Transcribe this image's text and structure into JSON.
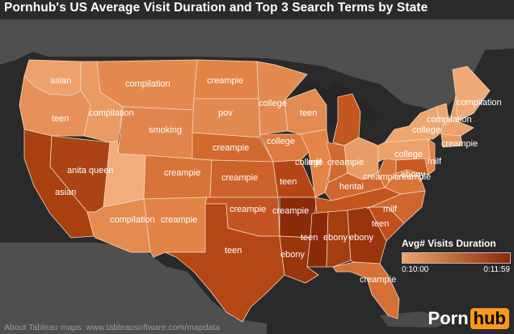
{
  "title": "Pornhub's US Average Visit Duration and Top 3 Search Terms by State",
  "credit": "About Tableau maps: www.tableausoftware.com/mapdata",
  "legend": {
    "title": "Avg# Visits Duration",
    "min_label": "0:10:00",
    "max_label": "0:11:59",
    "min_color": "#f0a46a",
    "max_color": "#8a2a08"
  },
  "logo": {
    "part1": "Porn",
    "part2": "hub"
  },
  "colors": {
    "background": "#2a2a2a",
    "land": "#505050",
    "water": "#1e1e1e",
    "state_border": "#f3d6bd"
  },
  "states": [
    {
      "id": "WA",
      "term": "asian",
      "color": "#eea06d"
    },
    {
      "id": "OR",
      "term": "teen",
      "color": "#e8905a"
    },
    {
      "id": "CA",
      "term": "asian",
      "color": "#a8400f"
    },
    {
      "id": "NV",
      "term": "anita queen",
      "color": "#ab4314"
    },
    {
      "id": "ID",
      "term": "compilation",
      "color": "#ec9a63"
    },
    {
      "id": "MT",
      "term": "compilation",
      "color": "#e48a4f"
    },
    {
      "id": "WY",
      "term": "smoking",
      "color": "#e1854c"
    },
    {
      "id": "UT",
      "term": "",
      "color": "#f1ad7c"
    },
    {
      "id": "CO",
      "term": "creampie",
      "color": "#d87437"
    },
    {
      "id": "AZ",
      "term": "compilation",
      "color": "#e48b50"
    },
    {
      "id": "NM",
      "term": "creampie",
      "color": "#e28448"
    },
    {
      "id": "ND",
      "term": "creampie",
      "color": "#e28446"
    },
    {
      "id": "SD",
      "term": "pov",
      "color": "#e18a4f"
    },
    {
      "id": "NE",
      "term": "creampie",
      "color": "#d26a2f"
    },
    {
      "id": "KS",
      "term": "creampie",
      "color": "#cd632a"
    },
    {
      "id": "OK",
      "term": "creampie",
      "color": "#c45522"
    },
    {
      "id": "TX",
      "term": "teen",
      "color": "#b54716"
    },
    {
      "id": "MN",
      "term": "college",
      "color": "#e28a50"
    },
    {
      "id": "IA",
      "term": "college",
      "color": "#dc7a3f"
    },
    {
      "id": "MO",
      "term": "teen",
      "color": "#b44616"
    },
    {
      "id": "AR",
      "term": "creampie",
      "color": "#8a2c09"
    },
    {
      "id": "LA",
      "term": "ebony",
      "color": "#9a350c"
    },
    {
      "id": "WI",
      "term": "teen",
      "color": "#e38b50"
    },
    {
      "id": "IL",
      "term": "college",
      "color": "#e28546"
    },
    {
      "id": "MI",
      "term": "",
      "color": "#c4561f"
    },
    {
      "id": "IN",
      "term": "milf",
      "color": "#d16a31"
    },
    {
      "id": "OH",
      "term": "creampie",
      "color": "#e89d68"
    },
    {
      "id": "KY",
      "term": "hentai",
      "color": "#cf6730"
    },
    {
      "id": "TN",
      "term": "creampie",
      "color": "#c3561f"
    },
    {
      "id": "MS",
      "term": "teen",
      "color": "#8a2a08"
    },
    {
      "id": "AL",
      "term": "ebony",
      "color": "#a43e10"
    },
    {
      "id": "GA",
      "term": "ebony",
      "color": "#9a340c"
    },
    {
      "id": "FL",
      "term": "creampie",
      "color": "#d57036"
    },
    {
      "id": "SC",
      "term": "teen",
      "color": "#c04f1b"
    },
    {
      "id": "NC",
      "term": "milf",
      "color": "#ce662d"
    },
    {
      "id": "VA",
      "term": "creampie",
      "color": "#d87538"
    },
    {
      "id": "WV",
      "term": "",
      "color": "#d87438"
    },
    {
      "id": "PA",
      "term": "college",
      "color": "#eca06a"
    },
    {
      "id": "NY",
      "term": "college",
      "color": "#eea670"
    },
    {
      "id": "MD",
      "term": "ebony",
      "color": "#c75a22"
    },
    {
      "id": "NJ",
      "term": "milf",
      "color": "#e08145"
    },
    {
      "id": "ME",
      "term": "",
      "color": "#eeaa78"
    },
    {
      "id": "VT",
      "term": "compilation",
      "color": "#eca673"
    },
    {
      "id": "MA",
      "term": "compilation",
      "color": "#eba36e"
    },
    {
      "id": "CT",
      "term": "creampie",
      "color": "#e89862"
    }
  ]
}
